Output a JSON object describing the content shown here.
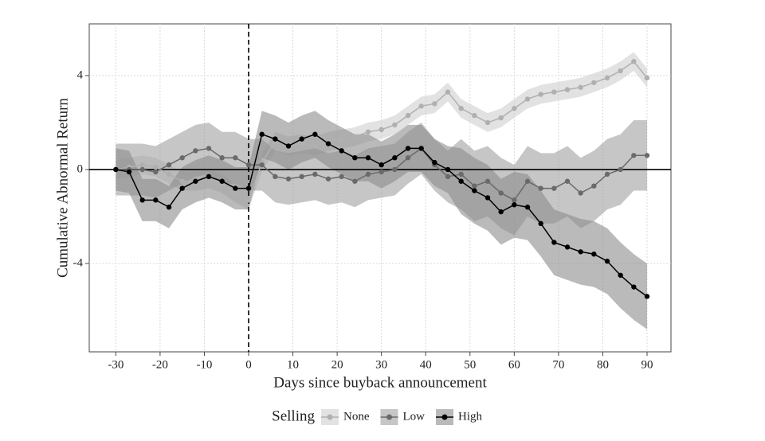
{
  "chart_data": {
    "type": "line",
    "x_label": "Days since buyback announcement",
    "y_label": "Cumulative Abnormal Return",
    "legend_title": "Selling",
    "x": [
      -30,
      -27,
      -24,
      -21,
      -18,
      -15,
      -12,
      -9,
      -6,
      -3,
      0,
      3,
      6,
      9,
      12,
      15,
      18,
      21,
      24,
      27,
      30,
      33,
      36,
      39,
      42,
      45,
      48,
      51,
      54,
      57,
      60,
      63,
      66,
      69,
      72,
      75,
      78,
      81,
      84,
      87,
      90
    ],
    "xlim": [
      -36,
      95.4
    ],
    "xticks": [
      -30,
      -20,
      -10,
      0,
      10,
      20,
      30,
      40,
      50,
      60,
      70,
      80,
      90
    ],
    "ylim": [
      -7.76,
      6.2
    ],
    "yticks": [
      -4,
      0,
      4
    ],
    "grid": true,
    "legend": "bottom",
    "series": [
      {
        "name": "None",
        "color": "#b0b0b0",
        "band_color": "#cfcfcf",
        "values": [
          0,
          0.1,
          0.2,
          0.1,
          -0.2,
          -0.5,
          -0.5,
          -0.4,
          -0.6,
          -1.0,
          -1.3,
          0.3,
          1.2,
          1.0,
          1.1,
          1.0,
          1.2,
          1.3,
          1.4,
          1.6,
          1.7,
          1.9,
          2.3,
          2.7,
          2.8,
          3.3,
          2.6,
          2.3,
          2.0,
          2.2,
          2.6,
          3.0,
          3.2,
          3.3,
          3.4,
          3.5,
          3.7,
          3.9,
          4.2,
          4.6,
          3.9
        ],
        "upper": [
          0.4,
          0.5,
          0.6,
          0.5,
          0.2,
          -0.1,
          -0.1,
          0,
          -0.2,
          -0.6,
          -0.9,
          0.7,
          1.6,
          1.4,
          1.5,
          1.4,
          1.6,
          1.7,
          1.8,
          2.0,
          2.1,
          2.3,
          2.7,
          3.1,
          3.2,
          3.7,
          3.0,
          2.7,
          2.4,
          2.6,
          3.0,
          3.4,
          3.6,
          3.7,
          3.8,
          3.9,
          4.1,
          4.3,
          4.6,
          5.0,
          4.3
        ],
        "lower": [
          -0.4,
          -0.3,
          -0.2,
          -0.3,
          -0.6,
          -0.9,
          -0.9,
          -0.8,
          -1.0,
          -1.4,
          -1.7,
          -0.1,
          0.8,
          0.6,
          0.7,
          0.6,
          0.8,
          0.9,
          1.0,
          1.2,
          1.3,
          1.5,
          1.9,
          2.3,
          2.4,
          2.9,
          2.2,
          1.9,
          1.6,
          1.8,
          2.2,
          2.6,
          2.8,
          2.9,
          3.0,
          3.1,
          3.3,
          3.5,
          3.8,
          4.2,
          3.5
        ]
      },
      {
        "name": "Low",
        "color": "#6a6a6a",
        "band_color": "#a0a0a0",
        "values": [
          0,
          0,
          0,
          -0.1,
          0.2,
          0.5,
          0.8,
          0.9,
          0.5,
          0.5,
          0.2,
          0.2,
          -0.3,
          -0.4,
          -0.3,
          -0.2,
          -0.4,
          -0.3,
          -0.5,
          -0.2,
          -0.1,
          0,
          0.5,
          0.9,
          0.2,
          -0.3,
          -0.2,
          -0.7,
          -0.5,
          -1.0,
          -1.3,
          -0.5,
          -0.8,
          -0.8,
          -0.5,
          -1.0,
          -0.7,
          -0.2,
          0,
          0.6,
          0.6
        ],
        "upper": [
          1.1,
          1.1,
          1.1,
          1.0,
          1.3,
          1.6,
          1.9,
          2.0,
          1.6,
          1.6,
          1.3,
          1.3,
          0.8,
          0.7,
          0.8,
          0.9,
          0.7,
          0.8,
          0.6,
          0.9,
          1.0,
          1.1,
          1.6,
          2.0,
          1.3,
          0.8,
          1.3,
          0.8,
          1.0,
          0.5,
          0.2,
          1.0,
          0.7,
          0.7,
          1.0,
          0.5,
          0.8,
          1.3,
          1.5,
          2.1,
          2.1
        ],
        "lower": [
          -1.1,
          -1.1,
          -1.1,
          -1.2,
          -0.9,
          -0.6,
          -0.3,
          -0.2,
          -0.6,
          -0.6,
          -0.9,
          -0.9,
          -1.4,
          -1.5,
          -1.4,
          -1.3,
          -1.5,
          -1.4,
          -1.6,
          -1.3,
          -1.2,
          -1.1,
          -0.6,
          -0.2,
          -0.9,
          -1.4,
          -1.7,
          -2.2,
          -2.0,
          -2.5,
          -2.8,
          -2.0,
          -2.3,
          -2.3,
          -2.0,
          -2.5,
          -2.2,
          -1.7,
          -1.5,
          -0.9,
          -0.9
        ]
      },
      {
        "name": "High",
        "color": "#000000",
        "band_color": "#8c8c8c",
        "values": [
          0,
          -0.1,
          -1.3,
          -1.3,
          -1.6,
          -0.8,
          -0.5,
          -0.3,
          -0.5,
          -0.8,
          -0.8,
          1.5,
          1.3,
          1.0,
          1.3,
          1.5,
          1.1,
          0.8,
          0.5,
          0.5,
          0.2,
          0.5,
          0.9,
          0.9,
          0.3,
          0.0,
          -0.5,
          -0.9,
          -1.2,
          -1.8,
          -1.5,
          -1.6,
          -2.3,
          -3.1,
          -3.3,
          -3.5,
          -3.6,
          -3.9,
          -4.5,
          -5.0,
          -5.4
        ],
        "upper": [
          0.9,
          0.8,
          -0.4,
          -0.4,
          -0.7,
          0.1,
          0.4,
          0.6,
          0.4,
          0.1,
          0.1,
          2.5,
          2.3,
          2.0,
          2.3,
          2.5,
          2.1,
          1.8,
          1.5,
          1.5,
          1.2,
          1.5,
          1.9,
          1.9,
          1.3,
          1.0,
          0.9,
          0.5,
          0.2,
          -0.4,
          -0.1,
          -0.2,
          -0.9,
          -1.7,
          -1.9,
          -2.1,
          -2.2,
          -2.5,
          -3.1,
          -3.6,
          -4.0
        ],
        "lower": [
          -0.9,
          -1.0,
          -2.2,
          -2.2,
          -2.5,
          -1.7,
          -1.4,
          -1.2,
          -1.4,
          -1.7,
          -1.7,
          0.5,
          0.3,
          0.0,
          0.3,
          0.5,
          0.1,
          -0.2,
          -0.5,
          -0.5,
          -0.8,
          -0.5,
          -0.1,
          -0.1,
          -0.7,
          -1.0,
          -1.9,
          -2.3,
          -2.6,
          -3.2,
          -2.9,
          -3.0,
          -3.7,
          -4.5,
          -4.7,
          -4.9,
          -5.0,
          -5.3,
          -5.9,
          -6.4,
          -6.8
        ]
      }
    ]
  }
}
